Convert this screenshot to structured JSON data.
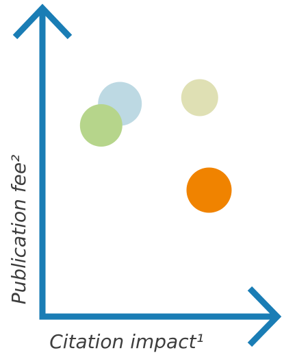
{
  "chart_data": {
    "type": "scatter",
    "xlabel": "Citation impact¹",
    "ylabel": "Publication fee²",
    "xlim": [
      0,
      1
    ],
    "ylim": [
      0,
      1
    ],
    "grid": false,
    "ticks": "none",
    "axis_color": "#1a7db5",
    "points": [
      {
        "x": 0.33,
        "y": 0.69,
        "color": "#bdd9e3"
      },
      {
        "x": 0.25,
        "y": 0.62,
        "color": "#b6d58b"
      },
      {
        "x": 0.67,
        "y": 0.71,
        "color": "#dfe0b4"
      },
      {
        "x": 0.71,
        "y": 0.41,
        "color": "#f08300"
      }
    ]
  }
}
